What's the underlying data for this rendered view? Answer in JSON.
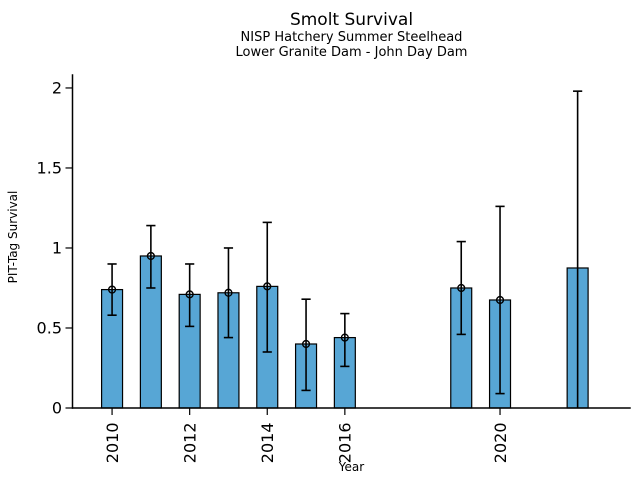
{
  "chart_data": {
    "type": "bar",
    "title": "Smolt Survival",
    "subtitle_line1": "NISP Hatchery Summer Steelhead",
    "subtitle_line2": "Lower Granite Dam - John Day Dam",
    "xlabel": "Year",
    "ylabel": "PIT-Tag Survival",
    "xlim": [
      2008.98,
      2023.35
    ],
    "ylim": [
      0,
      2.081
    ],
    "yticks": [
      0,
      0.5,
      1,
      1.5,
      2
    ],
    "ytick_labels": [
      "0",
      "0.5",
      "1",
      "1.5",
      "2"
    ],
    "xticks": [
      2010,
      2012,
      2014,
      2016,
      2020
    ],
    "xtick_labels": [
      "2010",
      "2012",
      "2014",
      "2016",
      "2020"
    ],
    "grid": false,
    "legend": false,
    "bar_width_years": 0.54,
    "colors": {
      "bar_fill": "#57A6D5",
      "bar_edge": "#000000",
      "error": "#000000",
      "text": "#000000"
    },
    "bars": [
      {
        "year": 2010,
        "value": 0.74,
        "err_low": 0.58,
        "err_high": 0.9,
        "marker": true,
        "low_cap": true
      },
      {
        "year": 2011,
        "value": 0.95,
        "err_low": 0.75,
        "err_high": 1.14,
        "marker": true,
        "low_cap": true
      },
      {
        "year": 2012,
        "value": 0.71,
        "err_low": 0.51,
        "err_high": 0.9,
        "marker": true,
        "low_cap": true
      },
      {
        "year": 2013,
        "value": 0.72,
        "err_low": 0.44,
        "err_high": 1.0,
        "marker": true,
        "low_cap": true
      },
      {
        "year": 2014,
        "value": 0.76,
        "err_low": 0.35,
        "err_high": 1.16,
        "marker": true,
        "low_cap": true
      },
      {
        "year": 2015,
        "value": 0.4,
        "err_low": 0.11,
        "err_high": 0.68,
        "marker": true,
        "low_cap": true
      },
      {
        "year": 2016,
        "value": 0.44,
        "err_low": 0.26,
        "err_high": 0.59,
        "marker": true,
        "low_cap": true
      },
      {
        "year": 2019,
        "value": 0.75,
        "err_low": 0.46,
        "err_high": 1.04,
        "marker": true,
        "low_cap": true
      },
      {
        "year": 2020,
        "value": 0.675,
        "err_low": 0.09,
        "err_high": 1.26,
        "marker": true,
        "low_cap": true
      },
      {
        "year": 2022,
        "value": 0.875,
        "err_low": 0.0,
        "err_high": 1.98,
        "marker": false,
        "low_cap": false
      }
    ]
  }
}
